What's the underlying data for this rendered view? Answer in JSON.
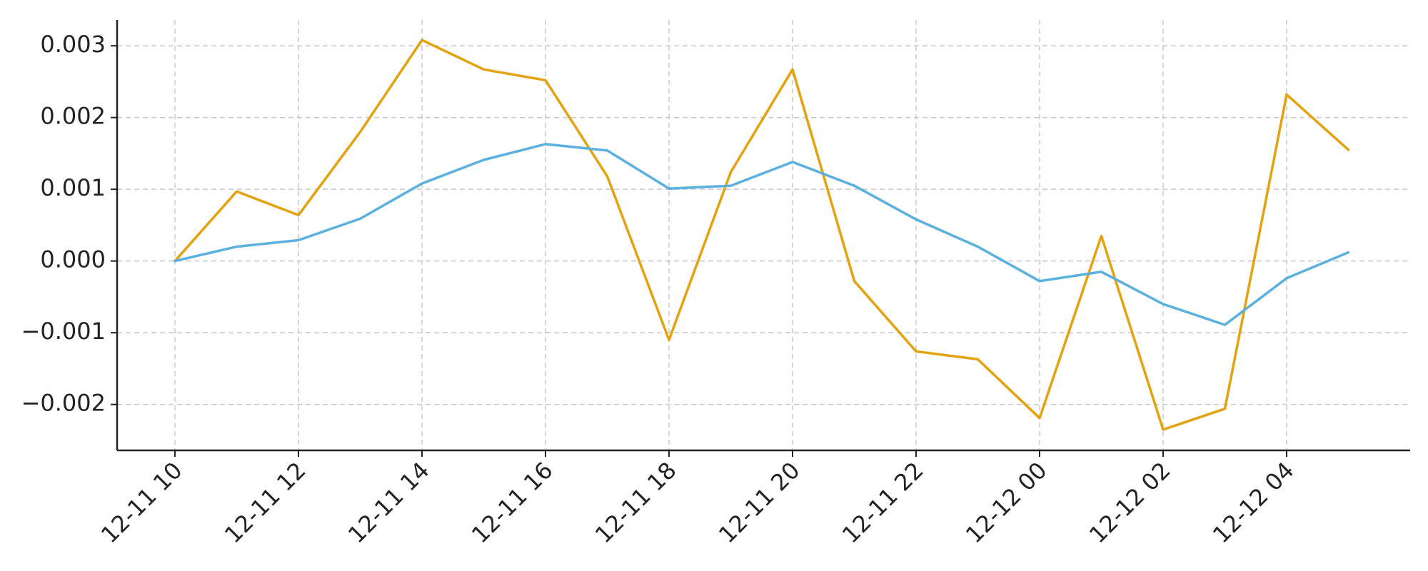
{
  "chart_data": {
    "type": "line",
    "title": "",
    "xlabel": "",
    "ylabel": "",
    "x": [
      "12-11 10",
      "12-11 11",
      "12-11 12",
      "12-11 13",
      "12-11 14",
      "12-11 15",
      "12-11 16",
      "12-11 17",
      "12-11 18",
      "12-11 19",
      "12-11 20",
      "12-11 21",
      "12-11 22",
      "12-11 23",
      "12-12 00",
      "12-12 01",
      "12-12 02",
      "12-12 03",
      "12-12 04",
      "12-12 05"
    ],
    "x_tick_labels": [
      "12-11 10",
      "12-11 12",
      "12-11 14",
      "12-11 16",
      "12-11 18",
      "12-11 20",
      "12-11 22",
      "12-12 00",
      "12-12 02",
      "12-12 04"
    ],
    "y_tick_labels": [
      "−0.002",
      "−0.001",
      "0.000",
      "0.001",
      "0.002",
      "0.003"
    ],
    "y_ticks": [
      -0.002,
      -0.001,
      0.0,
      0.001,
      0.002,
      0.003
    ],
    "ylim": [
      -0.00264,
      0.00336
    ],
    "grid": true,
    "series": [
      {
        "color": "#e3a20e",
        "values": [
          0.0,
          0.00097,
          0.00064,
          0.0018,
          0.00308,
          0.00267,
          0.00252,
          0.00118,
          -0.0011,
          0.00124,
          0.00267,
          -0.00028,
          -0.00126,
          -0.00137,
          -0.00219,
          0.00035,
          -0.00235,
          -0.00206,
          0.00232,
          0.00155
        ]
      },
      {
        "color": "#5ab0de",
        "values": [
          0.0,
          0.0002,
          0.00029,
          0.00059,
          0.00108,
          0.00141,
          0.00163,
          0.00154,
          0.00101,
          0.00105,
          0.00138,
          0.00105,
          0.00058,
          0.0002,
          -0.00028,
          -0.00015,
          -0.0006,
          -0.00089,
          -0.00024,
          0.00012
        ]
      }
    ]
  }
}
